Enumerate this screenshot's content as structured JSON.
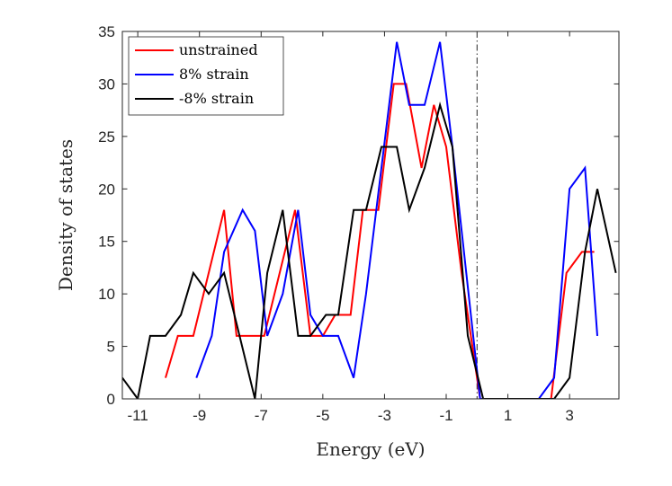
{
  "chart_data": {
    "type": "line",
    "xlabel": "Energy (eV)",
    "ylabel": "Density of states",
    "xlim": [
      -11.5,
      4.6
    ],
    "ylim": [
      0,
      35
    ],
    "xticks": [
      -11,
      -9,
      -7,
      -5,
      -3,
      -1,
      1,
      3
    ],
    "yticks": [
      0,
      5,
      10,
      15,
      20,
      25,
      30,
      35
    ],
    "grid": false,
    "legend_position": "top-left",
    "reference_line": {
      "x": 0,
      "style": "dash-dot"
    },
    "series": [
      {
        "name": "unstrained",
        "color": "#ff0000",
        "x": [
          -10.1,
          -9.7,
          -9.2,
          -8.2,
          -7.8,
          -7.3,
          -6.9,
          -6.4,
          -5.9,
          -5.4,
          -5.0,
          -4.6,
          -4.1,
          -3.7,
          -3.2,
          -2.7,
          -2.3,
          -1.8,
          -1.4,
          -1.0,
          -0.5,
          0.1,
          0.5,
          1.0,
          1.5,
          1.9,
          2.4,
          2.9,
          3.4,
          3.8
        ],
        "y": [
          2,
          6,
          6,
          18,
          6,
          6,
          6,
          12,
          18,
          6,
          6,
          8,
          8,
          18,
          18,
          30,
          30,
          22,
          28,
          24,
          12,
          0,
          0,
          0,
          0,
          0,
          0,
          12,
          14,
          14
        ]
      },
      {
        "name": "8% strain",
        "color": "#0000ff",
        "x": [
          -9.1,
          -8.6,
          -8.2,
          -7.6,
          -7.2,
          -6.8,
          -6.3,
          -5.8,
          -5.4,
          -5.0,
          -4.5,
          -4.0,
          -3.6,
          -3.1,
          -2.6,
          -2.2,
          -1.7,
          -1.2,
          -0.8,
          0.1,
          0.5,
          1.0,
          1.5,
          2.0,
          2.5,
          3.0,
          3.5,
          3.9
        ],
        "y": [
          2,
          6,
          14,
          18,
          16,
          6,
          10,
          18,
          8,
          6,
          6,
          2,
          10,
          22,
          34,
          28,
          28,
          34,
          24,
          0,
          0,
          0,
          0,
          0,
          2,
          20,
          22,
          6
        ]
      },
      {
        "name": "-8% strain",
        "color": "#000000",
        "x": [
          -11.5,
          -11.0,
          -10.6,
          -10.1,
          -9.6,
          -9.2,
          -8.7,
          -8.2,
          -7.7,
          -7.2,
          -6.8,
          -6.3,
          -5.8,
          -5.4,
          -4.9,
          -4.5,
          -4.0,
          -3.6,
          -3.1,
          -2.6,
          -2.2,
          -1.7,
          -1.2,
          -0.8,
          -0.3,
          0.2,
          0.6,
          1.1,
          1.5,
          2.0,
          2.5,
          3.0,
          3.5,
          3.9,
          4.5
        ],
        "y": [
          2,
          0,
          6,
          6,
          8,
          12,
          10,
          12,
          6,
          0,
          12,
          18,
          6,
          6,
          8,
          8,
          18,
          18,
          24,
          24,
          18,
          22,
          28,
          24,
          6,
          0,
          0,
          0,
          0,
          0,
          0,
          2,
          14,
          20,
          12
        ]
      }
    ]
  }
}
